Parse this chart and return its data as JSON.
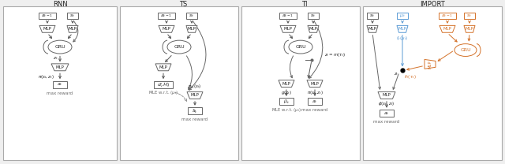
{
  "title_rnn": "RNN",
  "title_ts": "TS",
  "title_ti": "TI",
  "title_import": "IMPORT",
  "bg_color": "#efefef",
  "blue_color": "#5b9bd5",
  "orange_color": "#d4722a",
  "gray_color": "#666666",
  "dashed_color": "#888888",
  "panel_bg": "#ffffff",
  "border_color": "#999999"
}
